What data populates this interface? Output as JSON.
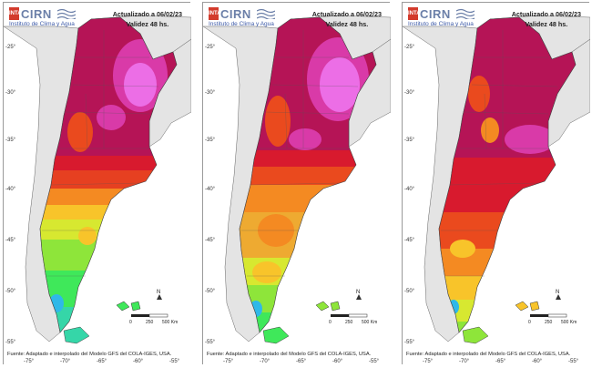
{
  "colors": {
    "frame": "#9a9a9a",
    "background": "#ffffff",
    "ocean": "#ffffff",
    "neighbor_land": "#e4e4e4",
    "border_line": "#555555",
    "temp_ramp": [
      "#2fb8e8",
      "#35d6a8",
      "#3fe85a",
      "#8ee53a",
      "#d7e830",
      "#f8c42a",
      "#f48a22",
      "#ea4a1e",
      "#d81a2e",
      "#b51456",
      "#d93aa8",
      "#ec6ee6"
    ]
  },
  "panels": [
    {
      "logo": {
        "badge": "INTA",
        "name": "CIRN",
        "subtitle": "Instituto de Clima y Agua"
      },
      "header": {
        "updated": "Actualizado a 06/02/23",
        "validity": "Validez 48 hs."
      },
      "north_arrow": "N",
      "scale": {
        "zero": "0",
        "mid": "250",
        "end": "500 Km"
      },
      "y_ticks": [
        "-25°",
        "-30°",
        "-35°",
        "-40°",
        "-45°",
        "-50°",
        "-55°"
      ],
      "x_ticks": [
        "-75°",
        "-70°",
        "-65°",
        "-60°",
        "-55°"
      ],
      "source": "Fuente: Adaptado e interpolado del Modelo GFS del COLA-IGES, USA."
    },
    {
      "logo": {
        "badge": "INTA",
        "name": "CIRN",
        "subtitle": "Instituto de Clima y Agua"
      },
      "header": {
        "updated": "Actualizado a 06/02/23",
        "validity": "Validez 48 hs."
      },
      "north_arrow": "N",
      "scale": {
        "zero": "0",
        "mid": "250",
        "end": "500 Km"
      },
      "y_ticks": [
        "-25°",
        "-30°",
        "-35°",
        "-40°",
        "-45°",
        "-50°",
        "-55°"
      ],
      "x_ticks": [
        "-75°",
        "-70°",
        "-65°",
        "-60°",
        "-55°"
      ],
      "source": "Fuente: Adaptado e interpolado del Modelo GFS del COLA-IGES, USA."
    },
    {
      "logo": {
        "badge": "INTA",
        "name": "CIRN",
        "subtitle": "Instituto de Clima y Agua"
      },
      "header": {
        "updated": "Actualizado a 06/02/23",
        "validity": "Validez 48 hs."
      },
      "north_arrow": "N",
      "scale": {
        "zero": "0",
        "mid": "250",
        "end": "500 Km"
      },
      "y_ticks": [
        "-25°",
        "-30°",
        "-35°",
        "-40°",
        "-45°",
        "-50°",
        "-55°"
      ],
      "x_ticks": [
        "-75°",
        "-70°",
        "-65°",
        "-60°",
        "-55°"
      ],
      "source": "Fuente: Adaptado e interpolado del Modelo GFS del COLA-IGES, USA."
    }
  ]
}
